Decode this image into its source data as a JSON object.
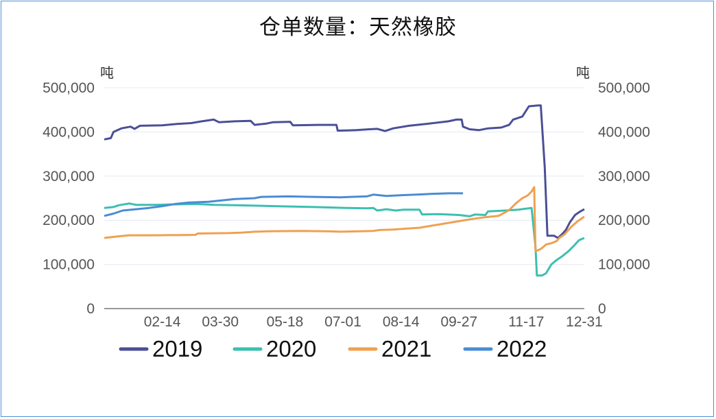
{
  "chart_data": {
    "type": "line",
    "title": "仓单数量：天然橡胶",
    "left_unit": "吨",
    "right_unit": "吨",
    "ylim": [
      0,
      500000
    ],
    "y_ticks": [
      "0",
      "100,000",
      "200,000",
      "300,000",
      "400,000",
      "500,000"
    ],
    "right_y_ticks": [
      "0",
      "100,000",
      "200,000",
      "300,000",
      "400,000",
      "500,000"
    ],
    "x_ticks": [
      "02-14",
      "03-30",
      "05-18",
      "07-01",
      "08-14",
      "09-27",
      "11-17",
      "12-31"
    ],
    "x_tick_days": [
      45,
      89,
      138,
      182,
      226,
      270,
      321,
      365
    ],
    "xlim": [
      1,
      365
    ],
    "series": [
      {
        "name": "2019",
        "color": "#4a4f96",
        "points": [
          [
            1,
            383000
          ],
          [
            6,
            386000
          ],
          [
            8,
            400000
          ],
          [
            14,
            408000
          ],
          [
            21,
            412000
          ],
          [
            24,
            407000
          ],
          [
            28,
            414000
          ],
          [
            45,
            415000
          ],
          [
            56,
            418000
          ],
          [
            67,
            420000
          ],
          [
            75,
            424000
          ],
          [
            84,
            428000
          ],
          [
            88,
            422000
          ],
          [
            100,
            424000
          ],
          [
            112,
            425000
          ],
          [
            115,
            416000
          ],
          [
            124,
            419000
          ],
          [
            129,
            422000
          ],
          [
            142,
            423000
          ],
          [
            144,
            415000
          ],
          [
            163,
            416000
          ],
          [
            177,
            416000
          ],
          [
            178,
            403000
          ],
          [
            192,
            404000
          ],
          [
            202,
            406000
          ],
          [
            208,
            407000
          ],
          [
            214,
            402000
          ],
          [
            220,
            408000
          ],
          [
            232,
            414000
          ],
          [
            245,
            418000
          ],
          [
            262,
            424000
          ],
          [
            268,
            428000
          ],
          [
            272,
            428000
          ],
          [
            273,
            412000
          ],
          [
            278,
            406000
          ],
          [
            285,
            404000
          ],
          [
            292,
            408000
          ],
          [
            302,
            410000
          ],
          [
            308,
            416000
          ],
          [
            311,
            428000
          ],
          [
            318,
            435000
          ],
          [
            323,
            458000
          ],
          [
            330,
            460000
          ],
          [
            332,
            460000
          ],
          [
            335,
            320000
          ],
          [
            337,
            165000
          ],
          [
            342,
            165000
          ],
          [
            345,
            160000
          ],
          [
            348,
            168000
          ],
          [
            351,
            178000
          ],
          [
            354,
            195000
          ],
          [
            358,
            212000
          ],
          [
            362,
            220000
          ],
          [
            365,
            225000
          ]
        ]
      },
      {
        "name": "2020",
        "color": "#3cbfb0",
        "points": [
          [
            1,
            228000
          ],
          [
            8,
            230000
          ],
          [
            12,
            234000
          ],
          [
            20,
            238000
          ],
          [
            25,
            235000
          ],
          [
            40,
            235000
          ],
          [
            55,
            236000
          ],
          [
            70,
            237000
          ],
          [
            85,
            235000
          ],
          [
            100,
            234000
          ],
          [
            115,
            233000
          ],
          [
            130,
            232000
          ],
          [
            160,
            230000
          ],
          [
            185,
            228000
          ],
          [
            200,
            227000
          ],
          [
            205,
            228000
          ],
          [
            208,
            222000
          ],
          [
            215,
            225000
          ],
          [
            222,
            222000
          ],
          [
            228,
            224000
          ],
          [
            240,
            224000
          ],
          [
            242,
            213000
          ],
          [
            255,
            214000
          ],
          [
            270,
            212000
          ],
          [
            278,
            209000
          ],
          [
            282,
            213000
          ],
          [
            290,
            212000
          ],
          [
            292,
            220000
          ],
          [
            305,
            222000
          ],
          [
            315,
            224000
          ],
          [
            325,
            228000
          ],
          [
            328,
            140000
          ],
          [
            329,
            75000
          ],
          [
            333,
            75000
          ],
          [
            336,
            80000
          ],
          [
            340,
            100000
          ],
          [
            344,
            110000
          ],
          [
            348,
            118000
          ],
          [
            353,
            130000
          ],
          [
            357,
            142000
          ],
          [
            361,
            155000
          ],
          [
            365,
            160000
          ]
        ]
      },
      {
        "name": "2021",
        "color": "#f0a050",
        "points": [
          [
            1,
            160000
          ],
          [
            10,
            163000
          ],
          [
            20,
            166000
          ],
          [
            40,
            166000
          ],
          [
            70,
            167000
          ],
          [
            72,
            170000
          ],
          [
            95,
            171000
          ],
          [
            105,
            172000
          ],
          [
            115,
            174000
          ],
          [
            125,
            175000
          ],
          [
            150,
            176000
          ],
          [
            170,
            175000
          ],
          [
            180,
            174000
          ],
          [
            195,
            175000
          ],
          [
            205,
            176000
          ],
          [
            210,
            178000
          ],
          [
            220,
            179000
          ],
          [
            230,
            181000
          ],
          [
            240,
            183000
          ],
          [
            250,
            188000
          ],
          [
            260,
            193000
          ],
          [
            270,
            198000
          ],
          [
            280,
            203000
          ],
          [
            290,
            207000
          ],
          [
            300,
            210000
          ],
          [
            308,
            223000
          ],
          [
            313,
            238000
          ],
          [
            318,
            250000
          ],
          [
            322,
            256000
          ],
          [
            325,
            265000
          ],
          [
            327,
            275000
          ],
          [
            328,
            130000
          ],
          [
            332,
            135000
          ],
          [
            336,
            145000
          ],
          [
            340,
            148000
          ],
          [
            344,
            153000
          ],
          [
            346,
            160000
          ],
          [
            350,
            168000
          ],
          [
            355,
            185000
          ],
          [
            360,
            198000
          ],
          [
            365,
            208000
          ]
        ]
      },
      {
        "name": "2022",
        "color": "#4a8cd4",
        "points": [
          [
            1,
            210000
          ],
          [
            8,
            215000
          ],
          [
            15,
            222000
          ],
          [
            25,
            225000
          ],
          [
            35,
            228000
          ],
          [
            45,
            232000
          ],
          [
            55,
            237000
          ],
          [
            65,
            240000
          ],
          [
            80,
            242000
          ],
          [
            90,
            245000
          ],
          [
            100,
            248000
          ],
          [
            115,
            250000
          ],
          [
            120,
            253000
          ],
          [
            140,
            254000
          ],
          [
            160,
            253000
          ],
          [
            180,
            252000
          ],
          [
            200,
            254000
          ],
          [
            205,
            258000
          ],
          [
            215,
            255000
          ],
          [
            228,
            257000
          ],
          [
            238,
            258000
          ],
          [
            250,
            260000
          ],
          [
            262,
            261000
          ],
          [
            273,
            261000
          ]
        ]
      }
    ],
    "legend_position": "bottom",
    "grid": "horizontal"
  }
}
